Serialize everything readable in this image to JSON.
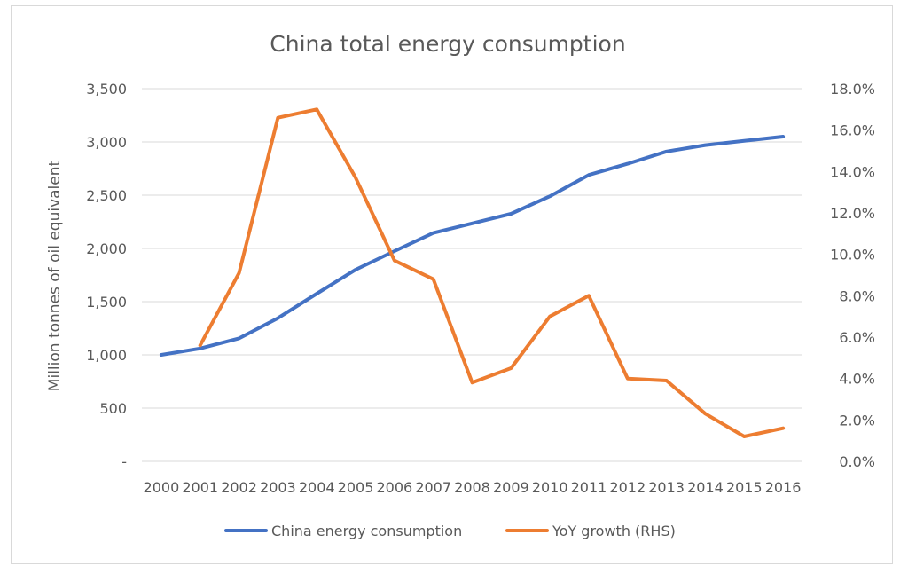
{
  "chart_data": {
    "type": "line",
    "title": "China total energy consumption",
    "xlabel": "",
    "ylabel": "Million tonnes of oil equivalent",
    "y2label": "",
    "categories": [
      "2000",
      "2001",
      "2002",
      "2003",
      "2004",
      "2005",
      "2006",
      "2007",
      "2008",
      "2009",
      "2010",
      "2011",
      "2012",
      "2013",
      "2014",
      "2015",
      "2016"
    ],
    "ylim": [
      0,
      3500
    ],
    "y2lim": [
      0,
      18
    ],
    "y_ticks": [
      "-",
      "500",
      "1,000",
      "1,500",
      "2,000",
      "2,500",
      "3,000",
      "3,500"
    ],
    "y2_ticks": [
      "0.0%",
      "2.0%",
      "4.0%",
      "6.0%",
      "8.0%",
      "10.0%",
      "12.0%",
      "14.0%",
      "16.0%",
      "18.0%"
    ],
    "grid": true,
    "legend_position": "bottom",
    "series": [
      {
        "name": "China energy consumption",
        "axis": "left",
        "color": "#4472c4",
        "values": [
          1000,
          1060,
          1155,
          1345,
          1575,
          1800,
          1975,
          2145,
          2235,
          2325,
          2490,
          2690,
          2795,
          2910,
          2970,
          3010,
          3050
        ]
      },
      {
        "name": "YoY growth (RHS)",
        "axis": "right",
        "color": "#ed7d31",
        "values": [
          null,
          5.6,
          9.1,
          16.6,
          17.0,
          13.7,
          9.7,
          8.8,
          3.8,
          4.5,
          7.0,
          8.0,
          4.0,
          3.9,
          2.3,
          1.2,
          1.6
        ]
      }
    ]
  }
}
